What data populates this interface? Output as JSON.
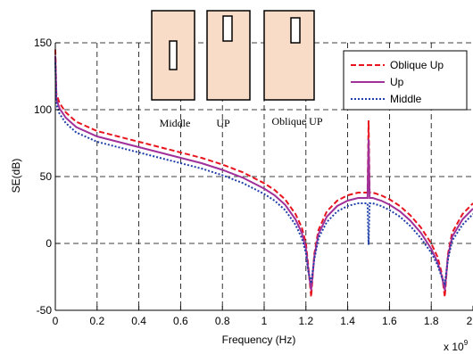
{
  "chart_data": {
    "type": "line",
    "xlabel": "Frequency (Hz)",
    "ylabel": "SE(dB)",
    "x_multiplier_label": "x 10",
    "x_multiplier_exp": "9",
    "xlim": [
      0,
      2.0
    ],
    "ylim": [
      -50,
      150
    ],
    "x_ticks": [
      0,
      0.2,
      0.4,
      0.6,
      0.8,
      1.0,
      1.2,
      1.4,
      1.6,
      1.8,
      2.0
    ],
    "x_tick_labels": [
      "0",
      "0.2",
      "0.4",
      "0.6",
      "0.8",
      "1",
      "1.2",
      "1.4",
      "1.6",
      "1.8",
      "2"
    ],
    "y_ticks": [
      -50,
      0,
      50,
      100,
      150
    ],
    "y_tick_labels": [
      "-50",
      "0",
      "50",
      "100",
      "150"
    ],
    "grid": true,
    "legend_position": "top-right",
    "series": [
      {
        "name": "Oblique Up",
        "color": "#e8141e",
        "style": "dashed",
        "points": [
          [
            0,
            145
          ],
          [
            0.005,
            112
          ],
          [
            0.02,
            105
          ],
          [
            0.05,
            98
          ],
          [
            0.1,
            91
          ],
          [
            0.2,
            84
          ],
          [
            0.3,
            80
          ],
          [
            0.4,
            76
          ],
          [
            0.5,
            72
          ],
          [
            0.6,
            68
          ],
          [
            0.7,
            64
          ],
          [
            0.8,
            59
          ],
          [
            0.9,
            53
          ],
          [
            1.0,
            45
          ],
          [
            1.05,
            40
          ],
          [
            1.1,
            33
          ],
          [
            1.15,
            22
          ],
          [
            1.18,
            12
          ],
          [
            1.2,
            0
          ],
          [
            1.21,
            -15
          ],
          [
            1.225,
            -40
          ],
          [
            1.24,
            -8
          ],
          [
            1.26,
            10
          ],
          [
            1.3,
            24
          ],
          [
            1.35,
            32
          ],
          [
            1.4,
            36
          ],
          [
            1.45,
            38
          ],
          [
            1.48,
            38
          ],
          [
            1.495,
            38
          ],
          [
            1.5,
            92
          ],
          [
            1.505,
            38
          ],
          [
            1.52,
            38
          ],
          [
            1.56,
            36
          ],
          [
            1.6,
            33
          ],
          [
            1.65,
            28
          ],
          [
            1.7,
            21
          ],
          [
            1.75,
            12
          ],
          [
            1.8,
            0
          ],
          [
            1.83,
            -10
          ],
          [
            1.85,
            -22
          ],
          [
            1.865,
            -40
          ],
          [
            1.88,
            -8
          ],
          [
            1.9,
            8
          ],
          [
            1.95,
            22
          ],
          [
            2.0,
            30
          ]
        ]
      },
      {
        "name": "Up",
        "color": "#a0309a",
        "style": "solid",
        "points": [
          [
            0,
            140
          ],
          [
            0.005,
            108
          ],
          [
            0.02,
            101
          ],
          [
            0.05,
            94
          ],
          [
            0.1,
            87
          ],
          [
            0.2,
            80
          ],
          [
            0.3,
            76
          ],
          [
            0.4,
            72
          ],
          [
            0.5,
            68
          ],
          [
            0.6,
            64
          ],
          [
            0.7,
            60
          ],
          [
            0.8,
            55
          ],
          [
            0.9,
            49
          ],
          [
            1.0,
            41
          ],
          [
            1.05,
            36
          ],
          [
            1.1,
            29
          ],
          [
            1.15,
            18
          ],
          [
            1.18,
            8
          ],
          [
            1.2,
            -4
          ],
          [
            1.21,
            -18
          ],
          [
            1.225,
            -35
          ],
          [
            1.24,
            -10
          ],
          [
            1.26,
            7
          ],
          [
            1.3,
            20
          ],
          [
            1.35,
            28
          ],
          [
            1.4,
            32
          ],
          [
            1.45,
            34
          ],
          [
            1.48,
            34
          ],
          [
            1.495,
            34
          ],
          [
            1.5,
            78
          ],
          [
            1.505,
            34
          ],
          [
            1.52,
            34
          ],
          [
            1.56,
            32
          ],
          [
            1.6,
            29
          ],
          [
            1.65,
            24
          ],
          [
            1.7,
            17
          ],
          [
            1.75,
            8
          ],
          [
            1.8,
            -4
          ],
          [
            1.83,
            -14
          ],
          [
            1.85,
            -24
          ],
          [
            1.865,
            -35
          ],
          [
            1.88,
            -10
          ],
          [
            1.9,
            5
          ],
          [
            1.95,
            18
          ],
          [
            2.0,
            26
          ]
        ]
      },
      {
        "name": "Middle",
        "color": "#1f3fa8",
        "style": "dotted",
        "points": [
          [
            0,
            135
          ],
          [
            0.005,
            104
          ],
          [
            0.02,
            97
          ],
          [
            0.05,
            90
          ],
          [
            0.1,
            83
          ],
          [
            0.2,
            76
          ],
          [
            0.3,
            72
          ],
          [
            0.4,
            68
          ],
          [
            0.5,
            64
          ],
          [
            0.6,
            60
          ],
          [
            0.7,
            56
          ],
          [
            0.8,
            51
          ],
          [
            0.9,
            45
          ],
          [
            1.0,
            37
          ],
          [
            1.05,
            32
          ],
          [
            1.1,
            25
          ],
          [
            1.15,
            14
          ],
          [
            1.18,
            4
          ],
          [
            1.2,
            -7
          ],
          [
            1.21,
            -20
          ],
          [
            1.225,
            -30
          ],
          [
            1.24,
            -12
          ],
          [
            1.26,
            4
          ],
          [
            1.3,
            16
          ],
          [
            1.35,
            24
          ],
          [
            1.4,
            28
          ],
          [
            1.45,
            30
          ],
          [
            1.48,
            30
          ],
          [
            1.495,
            30
          ],
          [
            1.5,
            -1
          ],
          [
            1.505,
            30
          ],
          [
            1.52,
            30
          ],
          [
            1.56,
            28
          ],
          [
            1.6,
            25
          ],
          [
            1.65,
            20
          ],
          [
            1.7,
            13
          ],
          [
            1.75,
            4
          ],
          [
            1.8,
            -7
          ],
          [
            1.83,
            -16
          ],
          [
            1.85,
            -25
          ],
          [
            1.865,
            -30
          ],
          [
            1.88,
            -12
          ],
          [
            1.9,
            2
          ],
          [
            1.95,
            14
          ],
          [
            2.0,
            22
          ]
        ]
      }
    ],
    "inset_labels": [
      "Middle",
      "UP",
      "Oblique UP"
    ],
    "inset_fill": "#f8dcc8"
  }
}
